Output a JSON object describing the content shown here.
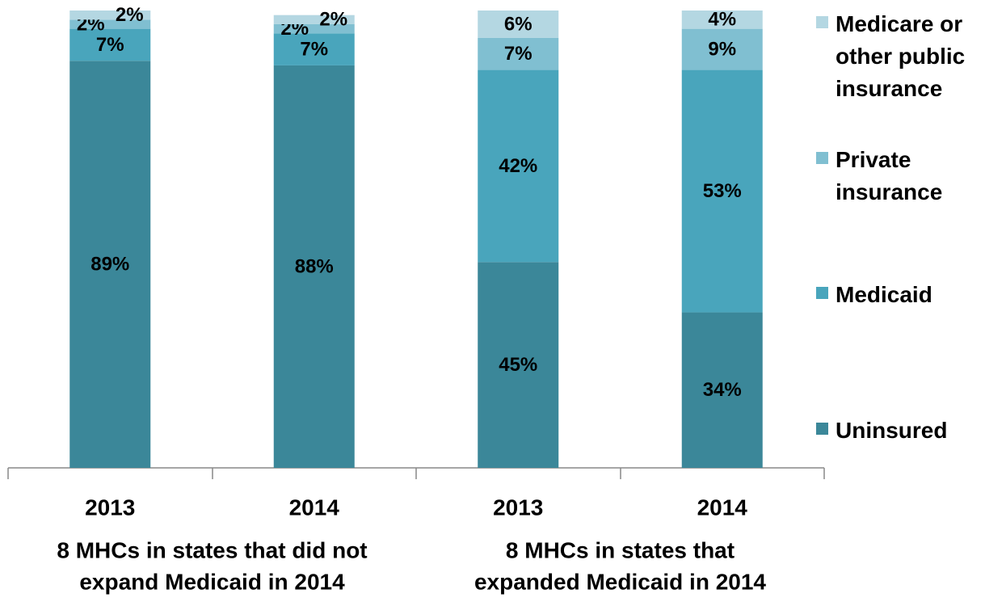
{
  "chart_data": {
    "type": "stacked_bar",
    "categories": [
      "2013",
      "2014",
      "2013",
      "2014"
    ],
    "group_labels": [
      [
        "8 MHCs in states that did not",
        "expand Medicaid in 2014"
      ],
      [
        "8 MHCs in states that",
        "expanded Medicaid in 2014"
      ]
    ],
    "series": [
      {
        "name": "Uninsured",
        "color": "#3b8799",
        "values": [
          89,
          88,
          45,
          34
        ],
        "value_labels": [
          "89%",
          "88%",
          "45%",
          "34%"
        ]
      },
      {
        "name": "Medicaid",
        "color": "#49a5bc",
        "values": [
          7,
          7,
          42,
          53
        ],
        "value_labels": [
          "7%",
          "7%",
          "42%",
          "53%"
        ]
      },
      {
        "name": "Private insurance",
        "color": "#80bfd1",
        "values": [
          2,
          2,
          7,
          9
        ],
        "value_labels": [
          "2%",
          "2%",
          "7%",
          "9%"
        ]
      },
      {
        "name": "Medicare or other public insurance",
        "color": "#b4d7e2",
        "values": [
          2,
          2,
          6,
          4
        ],
        "value_labels": [
          "2%",
          "2%",
          "6%",
          "4%"
        ]
      }
    ],
    "ylim": [
      0,
      100
    ],
    "legend": "right"
  }
}
